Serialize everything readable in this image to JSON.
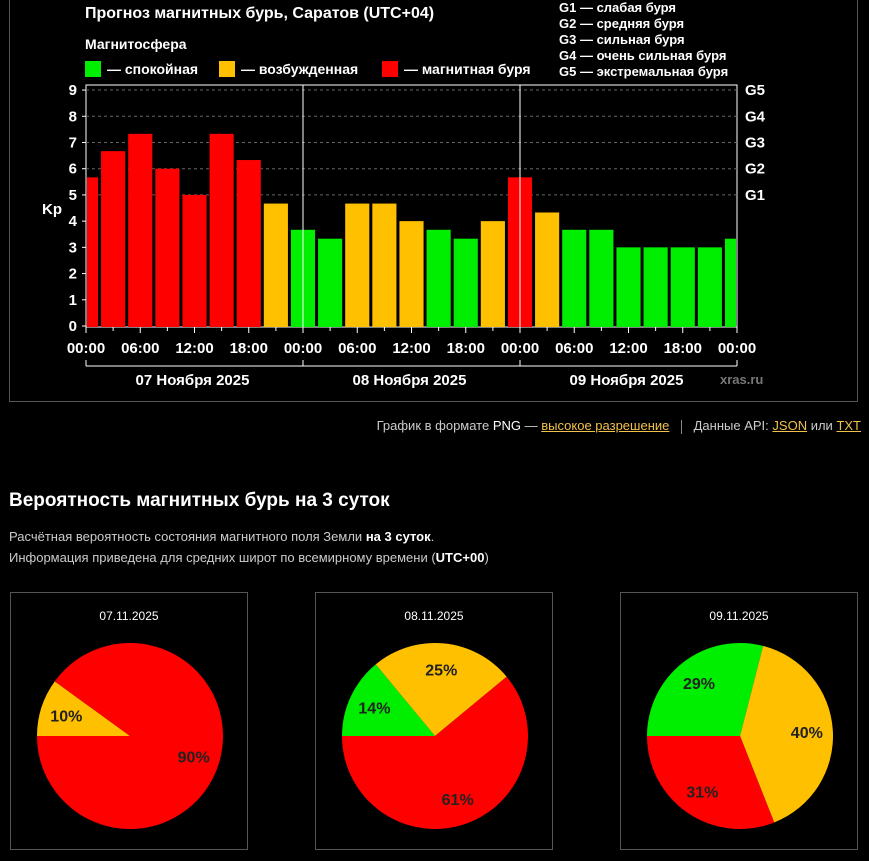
{
  "forecast": {
    "title": "Прогноз магнитных бурь, Саратов (UTC+04)",
    "legend_title": "Магнитосфера",
    "legend": [
      {
        "label": "— спокойная",
        "color": "#00ee00"
      },
      {
        "label": "— возбужденная",
        "color": "#ffc000"
      },
      {
        "label": "— магнитная буря",
        "color": "#ff0000"
      }
    ],
    "g_scale": [
      "G1 — слабая буря",
      "G2 — средняя буря",
      "G3 — сильная буря",
      "G4 — очень сильная буря",
      "G5 — экстремальная буря"
    ],
    "watermark": "xras.ru"
  },
  "chart_data": {
    "type": "bar",
    "ylabel": "Kp",
    "ylim": [
      0,
      9
    ],
    "y_ticks": [
      "0",
      "1",
      "2",
      "3",
      "4",
      "5",
      "6",
      "7",
      "8",
      "9"
    ],
    "g_ticks": [
      {
        "label": "G1",
        "kp": 5
      },
      {
        "label": "G2",
        "kp": 6
      },
      {
        "label": "G3",
        "kp": 7
      },
      {
        "label": "G4",
        "kp": 8
      },
      {
        "label": "G5",
        "kp": 9
      }
    ],
    "x_ticks": [
      "00:00",
      "06:00",
      "12:00",
      "18:00",
      "00:00",
      "06:00",
      "12:00",
      "18:00",
      "00:00",
      "06:00",
      "12:00",
      "18:00",
      "00:00"
    ],
    "days": [
      "07 Ноября 2025",
      "08 Ноября 2025",
      "09 Ноября 2025"
    ],
    "grid": true,
    "values": [
      5.67,
      6.67,
      7.33,
      6.0,
      5.0,
      7.33,
      6.33,
      4.67,
      3.67,
      3.33,
      4.67,
      4.67,
      4.0,
      3.67,
      3.33,
      4.0,
      5.67,
      4.33,
      3.67,
      3.67,
      3.0,
      3.0,
      3.0,
      3.0,
      3.33
    ],
    "colors": {
      "quiet": "#00ee00",
      "active": "#ffc000",
      "storm": "#ff0000"
    }
  },
  "links": {
    "png_prefix": "График в формате",
    "png_word": "PNG",
    "png_dash": "—",
    "png_link": "высокое разрешение",
    "api_prefix": "Данные API:",
    "json": "JSON",
    "or": "или",
    "txt": "TXT"
  },
  "probability": {
    "title": "Вероятность магнитных бурь на 3 суток",
    "line1_a": "Расчётная вероятность состояния магнитного поля Земли",
    "line1_b": "на 3 суток",
    "line1_c": ".",
    "line2_a": "Информация приведена для средних широт по всемирному времени (",
    "line2_b": "UTC+00",
    "line2_c": ")",
    "pies": [
      {
        "date": "07.11.2025",
        "slices": [
          {
            "label": "10%",
            "value": 10,
            "color": "#ffc000"
          },
          {
            "label": "90%",
            "value": 90,
            "color": "#ff0000"
          }
        ]
      },
      {
        "date": "08.11.2025",
        "slices": [
          {
            "label": "14%",
            "value": 14,
            "color": "#00ee00"
          },
          {
            "label": "25%",
            "value": 25,
            "color": "#ffc000"
          },
          {
            "label": "61%",
            "value": 61,
            "color": "#ff0000"
          }
        ]
      },
      {
        "date": "09.11.2025",
        "slices": [
          {
            "label": "29%",
            "value": 29,
            "color": "#00ee00"
          },
          {
            "label": "40%",
            "value": 40,
            "color": "#ffc000"
          },
          {
            "label": "31%",
            "value": 31,
            "color": "#ff0000"
          }
        ]
      }
    ]
  }
}
